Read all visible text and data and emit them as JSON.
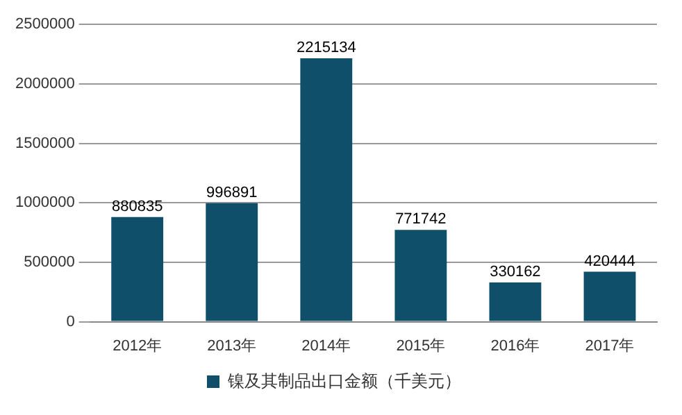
{
  "chart_data": {
    "type": "bar",
    "categories": [
      "2012年",
      "2013年",
      "2014年",
      "2015年",
      "2016年",
      "2017年"
    ],
    "series": [
      {
        "name": "镍及其制品出口金额（千美元）",
        "color": "#0f4f6a",
        "values": [
          880835,
          996891,
          2215134,
          771742,
          330162,
          420444
        ]
      }
    ],
    "ylim": [
      0,
      2500000
    ],
    "yticks": [
      0,
      500000,
      1000000,
      1500000,
      2000000,
      2500000
    ],
    "grid": "y",
    "legend": "bottom",
    "data_labels": true
  }
}
